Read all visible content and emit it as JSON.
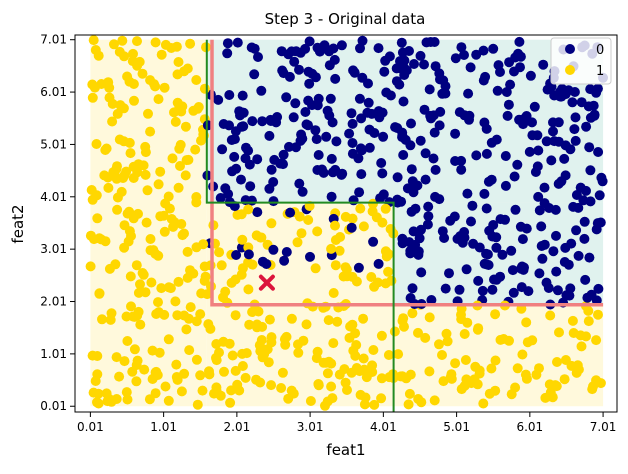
{
  "chart_data": {
    "type": "scatter",
    "title": "Step 3 - Original data",
    "xlabel": "feat1",
    "ylabel": "feat2",
    "xlim": [
      -0.2,
      7.2
    ],
    "ylim": [
      -0.1,
      7.1
    ],
    "xticks": [
      "0.01",
      "1.01",
      "2.01",
      "3.01",
      "4.01",
      "5.01",
      "6.01",
      "7.01"
    ],
    "yticks": [
      "0.01",
      "1.01",
      "2.01",
      "3.01",
      "4.01",
      "5.01",
      "6.01",
      "7.01"
    ],
    "xtick_values": [
      0.01,
      1.01,
      2.01,
      3.01,
      4.01,
      5.01,
      6.01,
      7.01
    ],
    "ytick_values": [
      0.01,
      1.01,
      2.01,
      3.01,
      4.01,
      5.01,
      6.01,
      7.01
    ],
    "grid": false,
    "legend_position": "top-right",
    "colors": {
      "class0": "#000080",
      "class1": "#ffd700",
      "region0": "#e0f2ee",
      "region1": "#fff9dc",
      "tree_line": "#228b22",
      "split_line": "#f08080",
      "marker": "#dc143c"
    },
    "series": [
      {
        "name": "0",
        "color": "#000080",
        "class": 0,
        "count": 470
      },
      {
        "name": "1",
        "color": "#ffd700",
        "class": 1,
        "count": 530
      }
    ],
    "regions": [
      {
        "class": 1,
        "x": [
          0.01,
          1.6
        ],
        "y": [
          0.01,
          7.01
        ]
      },
      {
        "class": 0,
        "x": [
          1.6,
          7.01
        ],
        "y": [
          3.9,
          7.01
        ]
      },
      {
        "class": 1,
        "x": [
          1.6,
          4.15
        ],
        "y": [
          0.01,
          3.9
        ]
      },
      {
        "class": 0,
        "x": [
          4.15,
          7.01
        ],
        "y": [
          1.95,
          3.9
        ]
      },
      {
        "class": 1,
        "x": [
          4.15,
          7.01
        ],
        "y": [
          0.01,
          1.95
        ]
      }
    ],
    "tree_boundary": [
      [
        1.6,
        7.01
      ],
      [
        1.6,
        3.9
      ],
      [
        4.15,
        3.9
      ],
      [
        4.15,
        -0.1
      ]
    ],
    "split_boundary": [
      [
        1.67,
        7.01
      ],
      [
        1.67,
        1.95
      ],
      [
        7.01,
        1.95
      ]
    ],
    "highlight_point": {
      "x": 2.42,
      "y": 2.37
    }
  }
}
